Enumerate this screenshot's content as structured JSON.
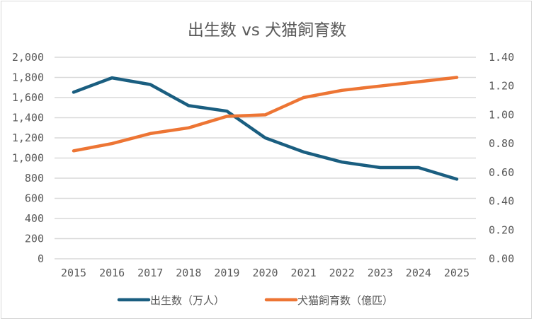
{
  "chart_data": {
    "type": "line",
    "title": "出生数 vs 犬猫飼育数",
    "xlabel": "",
    "ylabel": "",
    "x": [
      "2015",
      "2016",
      "2017",
      "2018",
      "2019",
      "2020",
      "2021",
      "2022",
      "2023",
      "2024",
      "2025"
    ],
    "series": [
      {
        "name": "出生数（万人）",
        "axis": "left",
        "color": "#1a5e80",
        "values": [
          1653,
          1796,
          1730,
          1520,
          1465,
          1200,
          1060,
          960,
          905,
          905,
          790
        ]
      },
      {
        "name": "犬猫飼育数（億匹）",
        "axis": "right",
        "color": "#ed7534",
        "values": [
          0.75,
          0.8,
          0.87,
          0.91,
          0.99,
          1.0,
          1.12,
          1.17,
          1.2,
          1.23,
          1.26
        ]
      }
    ],
    "y_left": {
      "ylim": [
        0,
        2000
      ],
      "ticks": [
        0,
        200,
        400,
        600,
        800,
        1000,
        1200,
        1400,
        1600,
        1800,
        2000
      ],
      "tick_labels": [
        "0",
        "200",
        "400",
        "600",
        "800",
        "1,000",
        "1,200",
        "1,400",
        "1,600",
        "1,800",
        "2,000"
      ]
    },
    "y_right": {
      "ylim": [
        0,
        1.4
      ],
      "ticks": [
        0,
        0.2,
        0.4,
        0.6,
        0.8,
        1.0,
        1.2,
        1.4
      ],
      "tick_labels": [
        "0.00",
        "0.20",
        "0.40",
        "0.60",
        "0.80",
        "1.00",
        "1.20",
        "1.40"
      ]
    },
    "grid": true,
    "legend_position": "bottom"
  }
}
